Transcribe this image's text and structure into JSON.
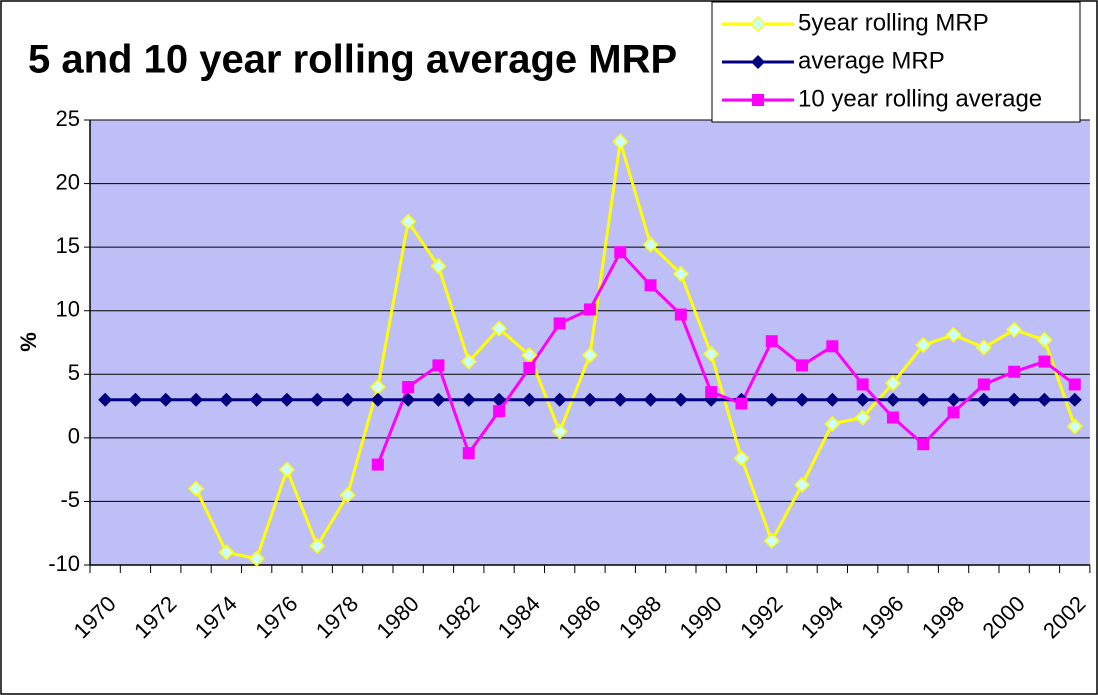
{
  "chart_data": {
    "type": "line",
    "title": "5 and 10 year rolling average MRP",
    "y_label": "%",
    "categories": [
      "1970",
      null,
      "1972",
      null,
      "1974",
      null,
      "1976",
      null,
      "1978",
      null,
      "1980",
      null,
      "1982",
      null,
      "1984",
      null,
      "1986",
      null,
      "1988",
      null,
      "1990",
      null,
      "1992",
      null,
      "1994",
      null,
      "1996",
      null,
      "1998",
      null,
      "2000",
      null,
      "2002"
    ],
    "series": [
      {
        "name": "5year rolling MRP",
        "color": "#ffff00",
        "marker": "diamond",
        "marker_fill": "#ccffff",
        "values": [
          null,
          null,
          null,
          -4,
          -9,
          -9.5,
          -2.5,
          -8.5,
          -4.5,
          4,
          17,
          13.5,
          6,
          8.6,
          6.5,
          0.5,
          6.5,
          23.3,
          15.2,
          12.9,
          6.6,
          -1.6,
          -8.1,
          -3.7,
          1.1,
          1.6,
          4.3,
          7.3,
          8.1,
          7.1,
          8.5,
          7.7,
          0.9
        ]
      },
      {
        "name": "average MRP",
        "color": "#000080",
        "marker": "diamond",
        "marker_fill": "#000080",
        "values": [
          3,
          3,
          3,
          3,
          3,
          3,
          3,
          3,
          3,
          3,
          3,
          3,
          3,
          3,
          3,
          3,
          3,
          3,
          3,
          3,
          3,
          3,
          3,
          3,
          3,
          3,
          3,
          3,
          3,
          3,
          3,
          3,
          3
        ]
      },
      {
        "name": "10 year rolling average",
        "color": "#ff00ff",
        "marker": "square",
        "marker_fill": "#ff00ff",
        "values": [
          null,
          null,
          null,
          null,
          null,
          null,
          null,
          null,
          null,
          -2.1,
          4,
          5.7,
          -1.2,
          2.1,
          5.5,
          9,
          10.1,
          14.6,
          12,
          9.7,
          3.6,
          2.7,
          7.6,
          5.7,
          7.2,
          4.2,
          1.6,
          -0.5,
          2,
          4.2,
          5.2,
          6,
          4.2
        ]
      }
    ],
    "ylim": [
      -10,
      25
    ],
    "yticks": [
      -10,
      -5,
      0,
      5,
      10,
      15,
      20,
      25
    ],
    "grid": true,
    "plot_background": "#bfbff7",
    "legend": "top-right"
  }
}
